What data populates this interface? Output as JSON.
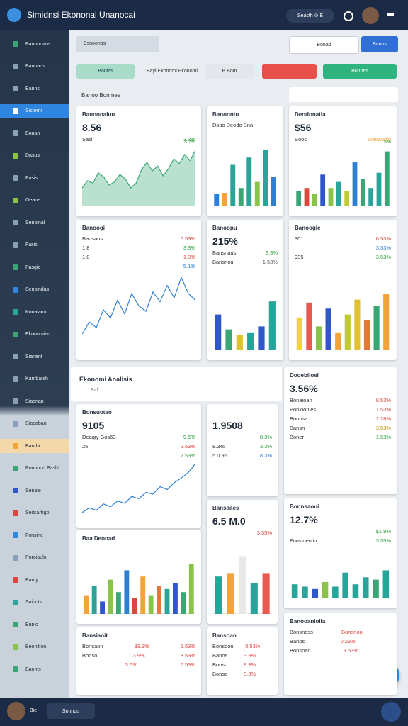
{
  "header": {
    "title": "Simidnsi Ekononal Unanocai",
    "search": "Seacth ⊙ Ë"
  },
  "sidebar": {
    "items": [
      "Banoonaos",
      "Banoaos",
      "Banns",
      "Sistemi",
      "Bouan",
      "Dasus",
      "Pasis",
      "Oeane",
      "Senoinal",
      "Fasis",
      "Pasgio",
      "Senoindas",
      "Konaiamu",
      "Ekonomiau",
      "Sianent",
      "Kambarsh",
      "Siaenan",
      "Siaeaban",
      "Banda",
      "Ponoood Paslit",
      "Senale",
      "Seitsarhgo",
      "Fonsine",
      "Poroiaulo",
      "Bauty",
      "Saidots",
      "Bunio",
      "Beonition",
      "Baonts"
    ]
  },
  "toolbar": {
    "search": "Bsnoonas",
    "dropdown": "Bonad",
    "button": "Banos",
    "pill": "Banlas",
    "label": "Bayi Ekonomi Ekonomi",
    "select": "B Bom",
    "red": "",
    "green": "Bonnes",
    "section": "Banoo Bonmes"
  },
  "section": {
    "title": "Ekonomi Analisis",
    "sub": "Bal"
  },
  "cards": [
    {
      "title": "Banoonaluu",
      "big": "8.56",
      "stats": [
        [
          "Sasl",
          "3.3%",
          "#2e9b3a"
        ]
      ],
      "tick": "3.7%",
      "chart": {
        "kind": "area",
        "color": "#3aa676",
        "ylim": [
          0,
          100
        ],
        "values": [
          30,
          42,
          38,
          55,
          48,
          35,
          40,
          52,
          45,
          30,
          38,
          60,
          72,
          58,
          66,
          50,
          62,
          78,
          70,
          85,
          75,
          92
        ]
      }
    },
    {
      "title": "Banoontu",
      "big": "",
      "stats": [
        [
          "Datio Deodo Bna",
          "",
          "#666"
        ]
      ],
      "tick": "",
      "chart": {
        "kind": "bars",
        "ylim": [
          0,
          100
        ],
        "values": [
          20,
          22,
          68,
          30,
          80,
          40,
          92,
          48
        ],
        "colors": [
          "#2f7fd1",
          "#f2a33a",
          "#2aa39a",
          "#3aa676",
          "#2aa39a",
          "#8bc34a",
          "#26a69a",
          "#2f7fd1"
        ]
      }
    },
    {
      "title": "Deodonatia",
      "big": "$56",
      "stats": [
        [
          "Soos",
          "Deoaudio",
          "#f2a33a"
        ]
      ],
      "tick": "5%",
      "chart": {
        "kind": "bars",
        "ylim": [
          0,
          100
        ],
        "values": [
          25,
          30,
          20,
          52,
          30,
          40,
          25,
          72,
          45,
          30,
          55,
          90
        ],
        "colors": [
          "#3aa676",
          "#d9473d",
          "#8bc34a",
          "#2f57c9",
          "#8bc34a",
          "#2aa39a",
          "#c0ca33",
          "#2f7fd1",
          "#3aa676",
          "#2aa39a",
          "#26a69a",
          "#3aa676"
        ]
      }
    },
    {
      "title": "Banoogi",
      "big": "",
      "stats": [
        [
          "Bansaus",
          "6.53%",
          "#d9473d"
        ],
        [
          "1.8",
          "3.3%",
          "#2e9b3a"
        ],
        [
          "1.0",
          "1.0%",
          "#d9473d"
        ],
        [
          "",
          "5.1%",
          "#2f7fd1"
        ]
      ],
      "tick": "",
      "chart": {
        "kind": "line",
        "color": "#2f7fd1",
        "ylim": [
          0,
          100
        ],
        "values": [
          20,
          35,
          28,
          50,
          40,
          62,
          45,
          70,
          55,
          48,
          72,
          60,
          80,
          65,
          90,
          70,
          62
        ]
      }
    },
    {
      "title": "Banoopu",
      "big": "215%",
      "stats": [
        [
          "Bansnaus",
          "3.3%",
          "#2e9b3a"
        ],
        [
          "Bansnou",
          "1.53%",
          "#555"
        ]
      ],
      "tick": "",
      "chart": {
        "kind": "bars",
        "ylim": [
          0,
          100
        ],
        "values": [
          60,
          35,
          25,
          30,
          40,
          82
        ],
        "colors": [
          "#2f57c9",
          "#3aa676",
          "#e0c132",
          "#2aa39a",
          "#2f57c9",
          "#26a69a"
        ]
      }
    },
    {
      "title": "Banoogie",
      "big": "",
      "stats": [
        [
          "301",
          "6.53%",
          "#d9473d"
        ],
        [
          "",
          "3.53%",
          "#2f7fd1"
        ],
        [
          "935",
          "3.53%",
          "#2e9b3a"
        ]
      ],
      "tick": "",
      "chart": {
        "kind": "bars",
        "ylim": [
          0,
          100
        ],
        "values": [
          55,
          80,
          40,
          70,
          30,
          60,
          85,
          50,
          75,
          95
        ],
        "colors": [
          "#f2d43a",
          "#e85a4f",
          "#8bc34a",
          "#2f57c9",
          "#f2a33a",
          "#c0ca33",
          "#e0c132",
          "#e0793a",
          "#3aa676",
          "#f2a33a"
        ]
      }
    },
    {
      "title": "Bonsuoteo",
      "big": "9105",
      "stats": [
        [
          "Deaqiy Gos63",
          "9.5%",
          "#2e9b3a"
        ],
        [
          "25",
          "2.53%",
          "#d9473d"
        ],
        [
          "",
          "2.53%",
          "#2e9b3a"
        ]
      ],
      "tick": "",
      "chart": {
        "kind": "line",
        "color": "#2f7fd1",
        "ylim": [
          0,
          100
        ],
        "values": [
          10,
          18,
          14,
          25,
          20,
          30,
          26,
          38,
          34,
          45,
          42,
          55,
          50,
          62,
          70,
          80,
          95
        ]
      }
    },
    {
      "title": "",
      "big": "1.9508",
      "stats": [
        [
          "",
          "8.3%",
          "#2e9b3a"
        ],
        [
          "8.3%",
          "3.3%",
          "#2e9b3a"
        ],
        [
          "5.0.96",
          "8.3%",
          "#2f7fd1"
        ]
      ],
      "tick": ""
    },
    {
      "title": "Dooebiioei",
      "big": "3.56%",
      "stats": [
        [
          "Bonaioan",
          "8.53%",
          "#d9473d"
        ],
        [
          "Ponloonies",
          "1.53%",
          "#d9473d"
        ],
        [
          "Bonnsa",
          "1.28%",
          "#d9473d"
        ],
        [
          "Bansn",
          "3.53%",
          "#b58900"
        ],
        [
          "Boner",
          "1.53%",
          "#2e9b3a"
        ]
      ],
      "tick": ""
    },
    {
      "title": "Baa Deonad",
      "big": "",
      "stats": [],
      "tick": "",
      "chart": {
        "kind": "bars",
        "ylim": [
          0,
          100
        ],
        "values": [
          30,
          45,
          20,
          55,
          35,
          70,
          25,
          60,
          30,
          45,
          40,
          50,
          35,
          80
        ],
        "colors": [
          "#f2a33a",
          "#2aa39a",
          "#2f57c9",
          "#8bc34a",
          "#3aa676",
          "#2f7fd1",
          "#d9473d",
          "#f2a33a",
          "#8bc34a",
          "#e0793a",
          "#2aa39a",
          "#2f57c9",
          "#3aa676",
          "#8bc34a"
        ]
      }
    },
    {
      "title": "Bansaaes",
      "big": "6.5 M.0",
      "stats": [
        [
          "",
          "3.35%",
          "#d9473d"
        ]
      ],
      "tick": "",
      "chart": {
        "kind": "bars",
        "ylim": [
          0,
          100
        ],
        "values": [
          55,
          60,
          85,
          45,
          60
        ],
        "colors": [
          "#26a69a",
          "#f2a33a",
          "#e8e8e8",
          "#2aa39a",
          "#e85a4f"
        ]
      }
    },
    {
      "title": "Bonnsaoui",
      "big": "12.7%",
      "stats": [
        [
          "",
          "$1.9%",
          "#2e9b3a"
        ],
        [
          "Fonsioeniio",
          "3.55%",
          "#2e9b3a"
        ]
      ],
      "tick": "",
      "chart": {
        "kind": "bars",
        "ylim": [
          0,
          100
        ],
        "values": [
          30,
          25,
          20,
          35,
          25,
          55,
          30,
          45,
          40,
          60
        ],
        "colors": [
          "#26a69a",
          "#2aa39a",
          "#2f57c9",
          "#8bc34a",
          "#26a69a",
          "#2aa39a",
          "#26a69a",
          "#2aa39a",
          "#3aa676",
          "#26a69a"
        ]
      }
    },
    {
      "title": "Bansiaoit",
      "big": "",
      "stats": [
        [
          "Bonsaon",
          "33.9%",
          "6.53%"
        ],
        [
          "Bonso",
          "3.9%",
          "3.53%"
        ],
        [
          "",
          "3.6%",
          "6.53%"
        ]
      ],
      "tick": ""
    },
    {
      "title": "Bansoan",
      "big": "",
      "stats": [
        [
          "Bonsoon",
          "8.53%",
          ""
        ],
        [
          "Banos",
          "3.3%",
          ""
        ],
        [
          "Bonso",
          "8.3%",
          ""
        ],
        [
          "Bonsa",
          "3.3%",
          ""
        ]
      ],
      "tick": ""
    },
    {
      "title": "Banooanioiia",
      "big": "",
      "stats": [
        [
          "Bonsnoss",
          "Bonsnoo",
          ""
        ],
        [
          "Banos",
          "0.23%",
          ""
        ],
        [
          "Bonsnao",
          "8.53%",
          ""
        ]
      ],
      "tick": ""
    }
  ],
  "bottom": {
    "user": "Bie",
    "pill": "Sonnou"
  }
}
